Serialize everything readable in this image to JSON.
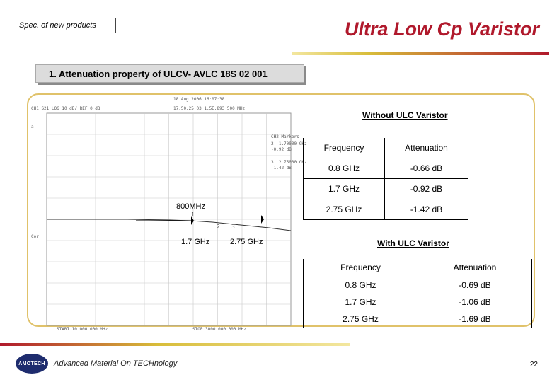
{
  "header": {
    "spec_label": "Spec. of new products",
    "title": "Ultra Low Cp Varistor"
  },
  "section_title": "1. Attenuation property of ULCV- AVLC 18S 02 001",
  "plot": {
    "top_text_1": "18 Aug 2006  16:07:38",
    "top_text_2": "17.50.25 03  1.5E.893 500 MHz",
    "channel_row": "CH1 S21  LOG  10 dB/ REF 0 dB",
    "marker_box": "CH2 Markers",
    "marker_rows": [
      "2: 1.70000 GHz",
      "-0.92 dB",
      "3: 2.75000 GHz",
      "-1.42 dB"
    ],
    "start_text": "START 10.000 000 MHz",
    "stop_text": "STOP 3000.000 000 MHz",
    "left_tag_top": "a",
    "left_tag_mid": "Cor",
    "markers": [
      {
        "id": "1",
        "label": "800MHz"
      },
      {
        "id": "2",
        "label": "1.7 GHz"
      },
      {
        "id": "3",
        "label": "2.75 GHz"
      }
    ]
  },
  "without_ulc": {
    "title": "Without ULC Varistor",
    "headers": [
      "Frequency",
      "Attenuation"
    ],
    "rows": [
      [
        "0.8 GHz",
        "-0.66 dB"
      ],
      [
        "1.7 GHz",
        "-0.92 dB"
      ],
      [
        "2.75 GHz",
        "-1.42 dB"
      ]
    ]
  },
  "with_ulc": {
    "title": "With ULC Varistor",
    "headers": [
      "Frequency",
      "Attenuation"
    ],
    "rows": [
      [
        "0.8 GHz",
        "-0.69 dB"
      ],
      [
        "1.7 GHz",
        "-1.06 dB"
      ],
      [
        "2.75 GHz",
        "-1.69 dB"
      ]
    ]
  },
  "footer": {
    "logo_text": "AMOTECH",
    "tagline": "Advanced Material On TECHnology",
    "page_number": "22"
  },
  "colors": {
    "title_red": "#b0192c",
    "panel_border": "#e0c26a",
    "logo_navy": "#1e2c6e"
  }
}
